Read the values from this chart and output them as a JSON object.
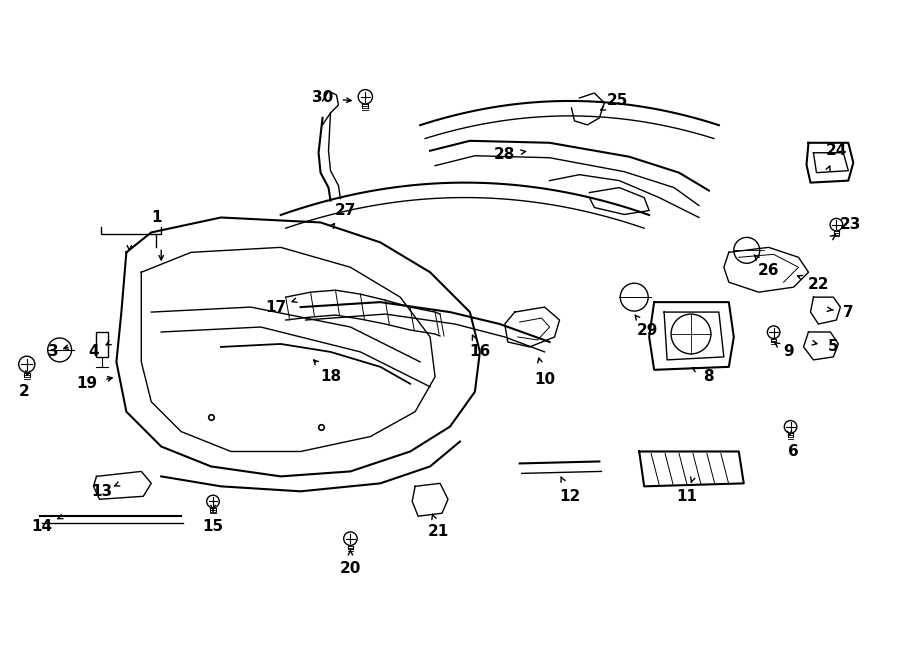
{
  "bg_color": "#ffffff",
  "line_color": "#000000",
  "text_color": "#000000",
  "label_fontsize": 11,
  "figsize": [
    9.0,
    6.62
  ],
  "dpi": 100
}
